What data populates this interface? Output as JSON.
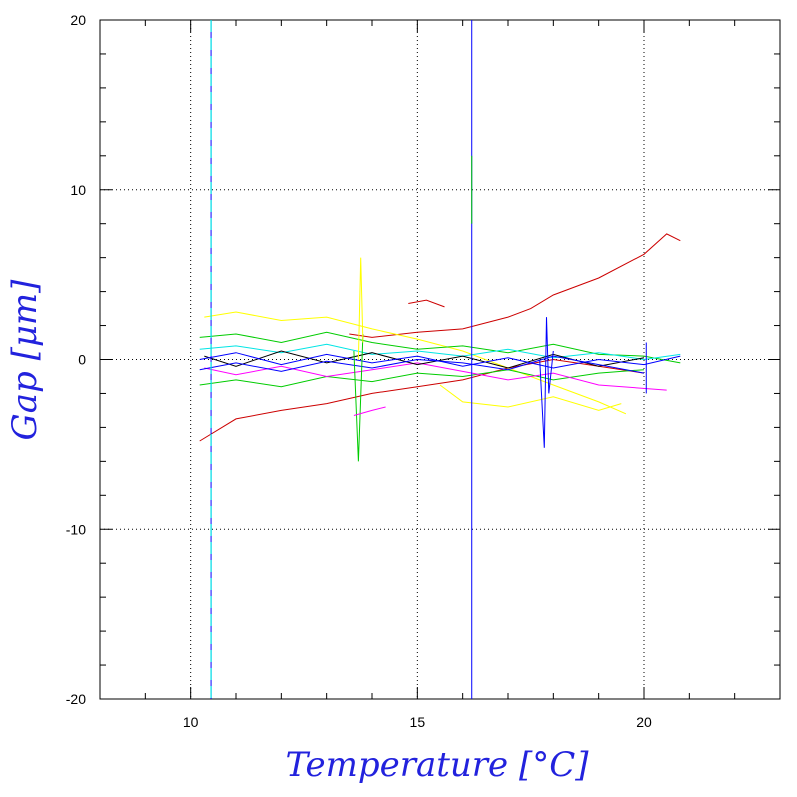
{
  "chart_data": {
    "type": "line",
    "title": "",
    "xlabel": "Temperature [°C]",
    "ylabel": "Gap [μm]",
    "xlim": [
      8,
      23
    ],
    "ylim": [
      -20,
      20
    ],
    "x_ticks": [
      10,
      15,
      20
    ],
    "y_ticks": [
      -20,
      -10,
      0,
      10,
      20
    ],
    "x_tick_labels": [
      "10",
      "15",
      "20"
    ],
    "y_tick_labels": [
      "-20",
      "-10",
      "0",
      "10",
      "20"
    ],
    "grid": "dotted at major ticks",
    "legend": "none",
    "colors": [
      "#0000ff",
      "#00cc00",
      "#00e5e5",
      "#ffff00",
      "#ff00ff",
      "#cc0000",
      "#000000",
      "#00aa66"
    ],
    "vertical_lines": [
      {
        "x": 10.45,
        "color": "#0000ff",
        "style": "solid"
      },
      {
        "x": 10.45,
        "color": "#00e5e5",
        "style": "dashed"
      },
      {
        "x": 16.2,
        "color": "#0000ff",
        "style": "solid"
      },
      {
        "x": 16.2,
        "color": "#00cc00",
        "style": "solid",
        "y_range": [
          8,
          12
        ]
      },
      {
        "x": 20.05,
        "color": "#0000ff",
        "style": "solid",
        "y_range": [
          -2,
          1
        ]
      }
    ],
    "band_summary": {
      "x_range": [
        10.2,
        20.8
      ],
      "central_spread": [
        -2,
        2
      ]
    },
    "series": [
      {
        "color": "#cc0000",
        "x": [
          10.2,
          11,
          12,
          13,
          14,
          15,
          16,
          17,
          18,
          19,
          20
        ],
        "y": [
          -4.8,
          -3.5,
          -3.0,
          -2.6,
          -2.0,
          -1.6,
          -1.2,
          -0.5,
          0.0,
          -0.4,
          -0.8
        ]
      },
      {
        "color": "#cc0000",
        "x": [
          13.5,
          14,
          15,
          16,
          17,
          17.5,
          18,
          19,
          20,
          20.5,
          20.8
        ],
        "y": [
          1.5,
          1.3,
          1.6,
          1.8,
          2.5,
          3.0,
          3.8,
          4.8,
          6.2,
          7.4,
          7.0
        ]
      },
      {
        "color": "#cc0000",
        "x": [
          14.8,
          15.2,
          15.6
        ],
        "y": [
          3.3,
          3.5,
          3.1
        ]
      },
      {
        "color": "#ffff00",
        "x": [
          10.3,
          11,
          12,
          13,
          14,
          15,
          16,
          17,
          18,
          19,
          19.6
        ],
        "y": [
          2.5,
          2.8,
          2.3,
          2.5,
          1.8,
          1.2,
          0.5,
          -0.5,
          -1.5,
          -2.5,
          -3.2
        ]
      },
      {
        "color": "#ffff00",
        "x": [
          15.5,
          16,
          17,
          18,
          19,
          19.5
        ],
        "y": [
          -1.5,
          -2.5,
          -2.8,
          -2.2,
          -3.0,
          -2.6
        ]
      },
      {
        "color": "#00cc00",
        "x": [
          10.2,
          11,
          12,
          13,
          14,
          15,
          16,
          17,
          18,
          19,
          20,
          20.8
        ],
        "y": [
          1.3,
          1.5,
          1.0,
          1.6,
          1.0,
          0.6,
          0.8,
          0.4,
          0.9,
          0.3,
          0.2,
          -0.2
        ]
      },
      {
        "color": "#00cc00",
        "x": [
          10.2,
          11,
          12,
          13,
          14,
          15,
          16,
          17,
          18,
          19,
          20
        ],
        "y": [
          -1.5,
          -1.2,
          -1.6,
          -1.0,
          -1.3,
          -0.8,
          -1.0,
          -0.6,
          -1.2,
          -0.8,
          -0.6
        ]
      },
      {
        "color": "#00e5e5",
        "x": [
          10.2,
          11,
          12,
          13,
          14,
          15,
          16,
          17,
          18,
          19,
          20,
          20.8
        ],
        "y": [
          0.6,
          0.8,
          0.4,
          0.9,
          0.3,
          0.5,
          0.2,
          0.6,
          0.1,
          0.4,
          0.0,
          0.3
        ]
      },
      {
        "color": "#ff00ff",
        "x": [
          10.3,
          11,
          12,
          13,
          14,
          15,
          16,
          17,
          18,
          19,
          20.5
        ],
        "y": [
          -0.5,
          -0.9,
          -0.4,
          -1.0,
          -0.6,
          -0.2,
          -0.7,
          -1.2,
          -0.8,
          -1.5,
          -1.8
        ]
      },
      {
        "color": "#000000",
        "x": [
          10.3,
          11,
          12,
          13,
          14,
          15,
          16,
          17,
          18,
          19,
          20
        ],
        "y": [
          0.2,
          -0.4,
          0.5,
          -0.2,
          0.4,
          -0.3,
          0.2,
          -0.5,
          0.3,
          -0.4,
          0.1
        ]
      },
      {
        "color": "#0000ff",
        "x": [
          10.2,
          11,
          12,
          13,
          14,
          15,
          16,
          17,
          18,
          19,
          20,
          20.8
        ],
        "y": [
          0.0,
          0.4,
          -0.3,
          0.3,
          -0.2,
          0.2,
          -0.4,
          0.1,
          -0.5,
          0.0,
          -0.3,
          0.2
        ]
      },
      {
        "color": "#0000ff",
        "x": [
          10.2,
          11,
          12,
          13,
          14,
          15,
          16,
          17,
          18,
          19,
          20
        ],
        "y": [
          -0.6,
          -0.2,
          -0.7,
          -0.1,
          -0.5,
          0.0,
          -0.2,
          -0.6,
          0.2,
          -0.3,
          -0.8
        ]
      },
      {
        "color": "#0000ff",
        "x": [
          17.7,
          17.8,
          17.85,
          17.9,
          18.0
        ],
        "y": [
          0.0,
          -5.2,
          2.5,
          -2.0,
          0.5
        ]
      },
      {
        "color": "#00cc00",
        "x": [
          13.6,
          13.7,
          13.8
        ],
        "y": [
          0.5,
          -6.0,
          1.5
        ]
      },
      {
        "color": "#ffff00",
        "x": [
          13.7,
          13.75,
          13.8
        ],
        "y": [
          0.0,
          6.0,
          1.0
        ]
      },
      {
        "color": "#ff00ff",
        "x": [
          13.6,
          14.0,
          14.3
        ],
        "y": [
          -3.3,
          -3.0,
          -2.8
        ]
      }
    ]
  }
}
